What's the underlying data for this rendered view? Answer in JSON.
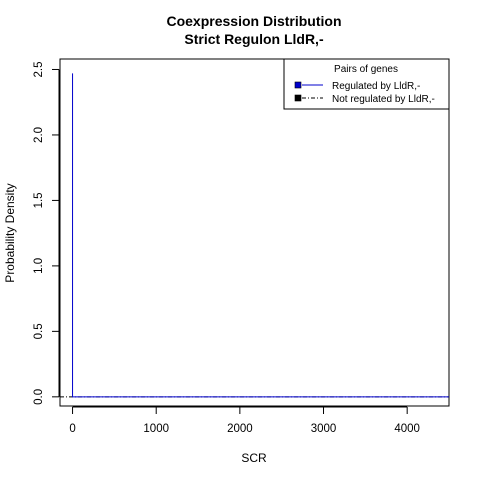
{
  "chart_data": {
    "type": "line",
    "title": [
      "Coexpression Distribution",
      "Strict Regulon LldR,-"
    ],
    "xlabel": "SCR",
    "ylabel": "Probability Density",
    "xlim": [
      -150,
      4500
    ],
    "ylim": [
      -0.07,
      2.58
    ],
    "xticks": [
      0,
      1000,
      2000,
      3000,
      4000
    ],
    "xtick_labels": [
      "0",
      "1000",
      "2000",
      "3000",
      "4000"
    ],
    "yticks": [
      0.0,
      0.5,
      1.0,
      1.5,
      2.0,
      2.5
    ],
    "ytick_labels": [
      "0.0",
      "0.5",
      "1.0",
      "1.5",
      "2.0",
      "2.5"
    ],
    "legend": {
      "title": "Pairs of genes",
      "position": "top-right",
      "entries": [
        {
          "label": "Regulated by  LldR,-",
          "color": "#0000cc",
          "line": "solid"
        },
        {
          "label": "Not regulated by  LldR,-",
          "color": "#000000",
          "line": "dashdot"
        }
      ]
    },
    "series": [
      {
        "name": "Regulated by  LldR,-",
        "color": "#0000cc",
        "x": [
          0,
          0,
          0,
          4500
        ],
        "y": [
          0,
          2.47,
          0,
          0
        ]
      },
      {
        "name": "Not regulated by  LldR,-",
        "color": "#000000",
        "x": [
          -150,
          4500
        ],
        "y": [
          0,
          0
        ]
      }
    ]
  }
}
